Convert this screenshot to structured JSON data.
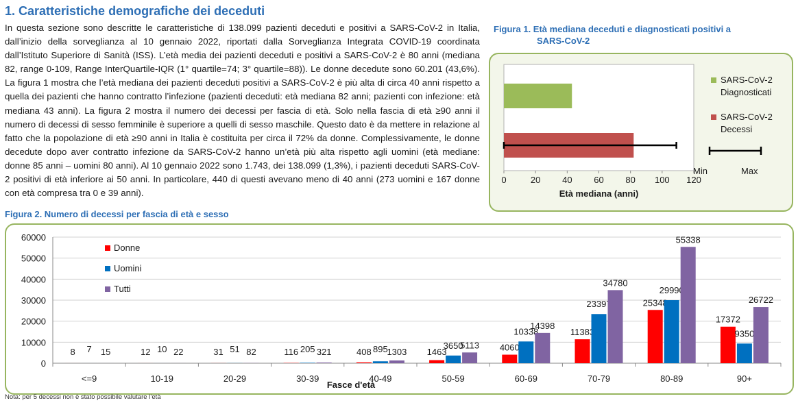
{
  "section": {
    "title": "1. Caratteristiche demografiche dei deceduti",
    "paragraph": "In questa sezione sono descritte le caratteristiche di 138.099 pazienti deceduti e positivi a SARS-CoV-2 in Italia, dall’inizio della sorveglianza al 10 gennaio 2022, riportati dalla Sorveglianza Integrata COVID-19 coordinata dall’Istituto Superiore di Sanità (ISS). L’età media dei pazienti deceduti e positivi a SARS-CoV-2 è 80 anni (mediana 82, range 0-109, Range InterQuartile-IQR (1° quartile=74; 3° quartile=88)). Le donne decedute sono 60.201 (43,6%). La figura 1 mostra che l’età mediana dei pazienti deceduti positivi a SARS-CoV-2 è più alta di circa 40 anni rispetto a quella dei pazienti che hanno contratto l’infezione (pazienti deceduti: età mediana 82 anni; pazienti con infezione: età mediana 43 anni). La figura 2 mostra il numero dei decessi per fascia di età. Solo nella fascia di età ≥90 anni il numero di decessi di sesso femminile è superiore a quelli di sesso maschile. Questo dato è da mettere in relazione al fatto che la popolazione di età ≥90 anni in Italia è costituita per circa il 72% da donne. Complessivamente, le donne decedute dopo aver contratto infezione da SARS-CoV-2 hanno un’età più alta rispetto agli uomini (età mediane: donne 85 anni – uomini 80 anni).  Al 10 gennaio 2022 sono 1.743, dei 138.099 (1,3%), i pazienti deceduti SARS-CoV-2 positivi di età inferiore ai 50 anni. In particolare, 440 di questi avevano meno di 40 anni (273 uomini e 167 donne con età compresa tra 0 e 39 anni)."
  },
  "figure1": {
    "caption_line1": "Figura 1. Età mediana deceduti e diagnosticati positivi a",
    "caption_line2": "SARS-CoV-2",
    "chart_data": {
      "type": "bar",
      "orientation": "horizontal",
      "xlabel": "Età mediana (anni)",
      "xlim": [
        0,
        120
      ],
      "xticks": [
        0,
        20,
        40,
        60,
        80,
        100,
        120
      ],
      "series": [
        {
          "name": "SARS-CoV-2 Diagnosticati",
          "legend_lines": [
            "SARS-CoV-2",
            "Diagnosticati"
          ],
          "value": 43,
          "color": "#9bbb59"
        },
        {
          "name": "SARS-CoV-2 Decessi",
          "legend_lines": [
            "SARS-CoV-2",
            "Decessi"
          ],
          "value": 82,
          "range": [
            0,
            109
          ],
          "color": "#c0504d"
        }
      ],
      "range_legend": {
        "min_label": "Min",
        "max_label": "Max"
      },
      "grid": false
    }
  },
  "figure2": {
    "caption": "Figura 2. Numero di decessi per fascia di età e sesso",
    "chart_data": {
      "type": "bar",
      "xlabel": "Fasce d'età",
      "ylabel": "",
      "ylim": [
        0,
        60000
      ],
      "yticks": [
        0,
        10000,
        20000,
        30000,
        40000,
        50000,
        60000
      ],
      "categories": [
        "<=9",
        "10-19",
        "20-29",
        "30-39",
        "40-49",
        "50-59",
        "60-69",
        "70-79",
        "80-89",
        "90+"
      ],
      "series": [
        {
          "name": "Donne",
          "color": "#ff0000",
          "values": [
            8,
            12,
            31,
            116,
            408,
            1463,
            4060,
            11383,
            25348,
            17372
          ]
        },
        {
          "name": "Uomini",
          "color": "#0070c0",
          "values": [
            7,
            10,
            51,
            205,
            895,
            3650,
            10338,
            23397,
            29990,
            9350
          ]
        },
        {
          "name": "Tutti",
          "color": "#8064a2",
          "values": [
            15,
            22,
            82,
            321,
            1303,
            5113,
            14398,
            34780,
            55338,
            26722
          ]
        }
      ],
      "grid": true,
      "legend": "top-left"
    }
  },
  "note": "Nota: per 5 decessi non è stato possibile valutare l’età"
}
